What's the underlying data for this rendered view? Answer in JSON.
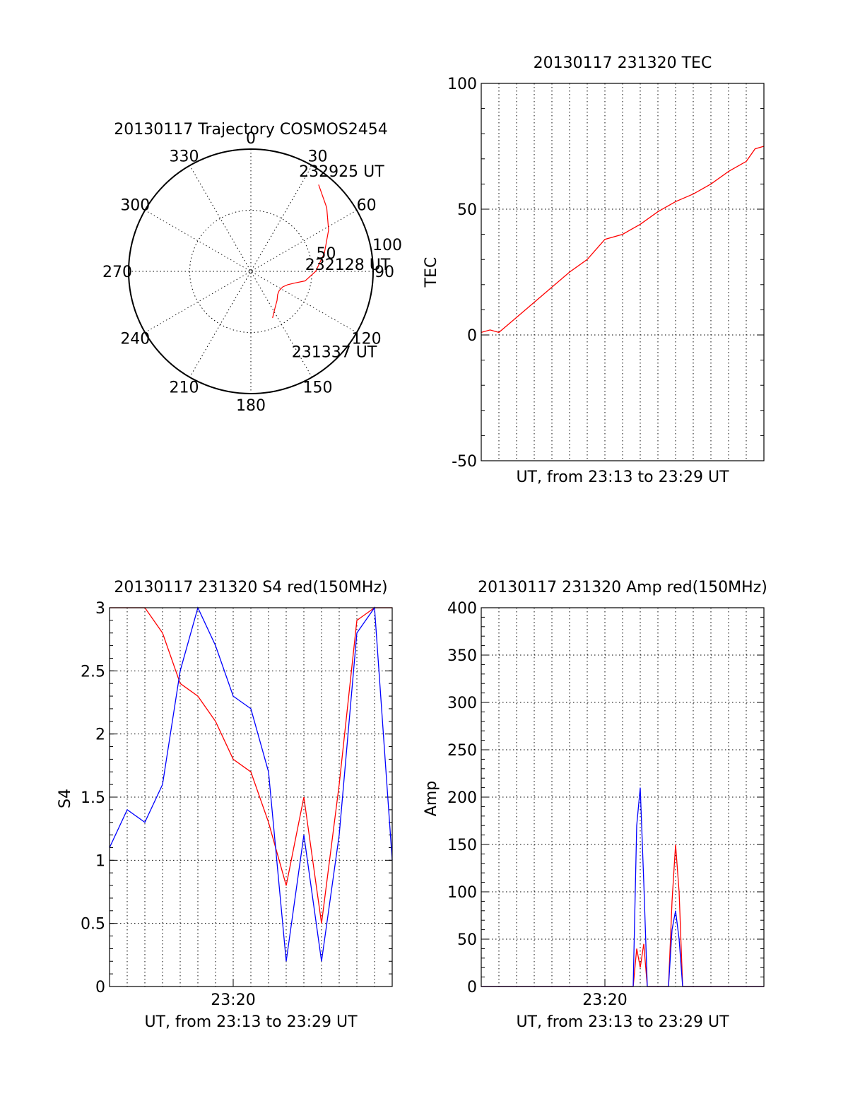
{
  "colors": {
    "red": "#ff0000",
    "blue": "#0000ff",
    "black": "#000000"
  },
  "chart_data": [
    {
      "id": "trajectory",
      "type": "polar",
      "title": "20130117 Trajectory COSMOS2454",
      "angle_labels": [
        "0",
        "30",
        "60",
        "90",
        "120",
        "150",
        "180",
        "210",
        "240",
        "270",
        "300",
        "330"
      ],
      "radius_labels": [
        "50",
        "100"
      ],
      "rmax": 100,
      "track": [
        [
          38,
          90
        ],
        [
          50,
          81
        ],
        [
          62,
          72
        ],
        [
          76,
          62
        ],
        [
          90,
          53
        ],
        [
          100,
          45
        ],
        [
          105,
          37
        ],
        [
          110,
          32
        ],
        [
          116,
          29
        ],
        [
          124,
          28
        ],
        [
          131,
          29
        ],
        [
          138,
          32
        ],
        [
          145,
          35
        ],
        [
          150,
          38
        ],
        [
          155,
          42
        ]
      ],
      "annotations": [
        {
          "text": "232925 UT",
          "az": 30,
          "r": 88
        },
        {
          "text": "232128 UT",
          "az": 90,
          "r": 49
        },
        {
          "text": "231337 UT",
          "az": 152,
          "r": 81
        }
      ]
    },
    {
      "id": "tec",
      "type": "line",
      "title": "20130117 231320 TEC",
      "xlabel": "UT, from 23:13 to 23:29 UT",
      "ylabel": "TEC",
      "xlim": [
        0,
        16
      ],
      "ylim": [
        -50,
        100
      ],
      "yticks": [
        -50,
        0,
        50,
        100
      ],
      "series": [
        {
          "color": "#ff0000",
          "x": [
            0,
            0.5,
            1,
            2,
            3,
            4,
            5,
            6,
            7,
            8,
            9,
            10,
            11,
            12,
            13,
            14,
            15,
            15.5,
            16
          ],
          "y": [
            1,
            2,
            1,
            7,
            13,
            19,
            25,
            30,
            38,
            40,
            44,
            49,
            53,
            56,
            60,
            65,
            69,
            74,
            75
          ]
        }
      ]
    },
    {
      "id": "s4",
      "type": "line",
      "title": "20130117 231320 S4 red(150MHz)",
      "xlabel": "UT, from 23:13 to 23:29 UT",
      "ylabel": "S4",
      "xlim": [
        0,
        16
      ],
      "ylim": [
        0,
        3
      ],
      "yticks": [
        0,
        0.5,
        1,
        1.5,
        2,
        2.5,
        3
      ],
      "xticks": [
        {
          "v": 7,
          "label": "23:20"
        }
      ],
      "series": [
        {
          "color": "#ff0000",
          "x": [
            0,
            1,
            2,
            3,
            4,
            5,
            6,
            7,
            8,
            9,
            10,
            11,
            12,
            13,
            14,
            15,
            16
          ],
          "y": [
            3,
            3,
            3,
            2.8,
            2.4,
            2.3,
            2.1,
            1.8,
            1.7,
            1.3,
            0.8,
            1.5,
            0.5,
            1.6,
            2.9,
            3,
            3
          ]
        },
        {
          "color": "#0000ff",
          "x": [
            0,
            1,
            2,
            3,
            4,
            5,
            6,
            7,
            8,
            9,
            10,
            11,
            12,
            13,
            14,
            15,
            16
          ],
          "y": [
            1.1,
            1.4,
            1.3,
            1.6,
            2.5,
            3,
            2.7,
            2.3,
            2.2,
            1.7,
            0.2,
            1.2,
            0.2,
            1.2,
            2.8,
            3,
            1
          ]
        }
      ]
    },
    {
      "id": "amp",
      "type": "line",
      "title": "20130117 231320 Amp red(150MHz)",
      "xlabel": "UT, from 23:13 to 23:29 UT",
      "ylabel": "Amp",
      "xlim": [
        0,
        16
      ],
      "ylim": [
        0,
        400
      ],
      "yticks": [
        0,
        50,
        100,
        150,
        200,
        250,
        300,
        350,
        400
      ],
      "xticks": [
        {
          "v": 7,
          "label": "23:20"
        }
      ],
      "series": [
        {
          "color": "#ff0000",
          "x": [
            0,
            8.6,
            8.8,
            9.0,
            9.2,
            9.4,
            10.6,
            10.8,
            11.0,
            11.2,
            11.4,
            16
          ],
          "y": [
            0,
            0,
            40,
            20,
            45,
            0,
            0,
            90,
            150,
            100,
            0,
            0
          ]
        },
        {
          "color": "#0000ff",
          "x": [
            0,
            8.6,
            8.8,
            9.0,
            9.2,
            9.4,
            10.6,
            10.8,
            11.0,
            11.2,
            11.4,
            16
          ],
          "y": [
            0,
            0,
            170,
            210,
            110,
            0,
            0,
            60,
            80,
            50,
            0,
            0
          ]
        }
      ]
    }
  ]
}
